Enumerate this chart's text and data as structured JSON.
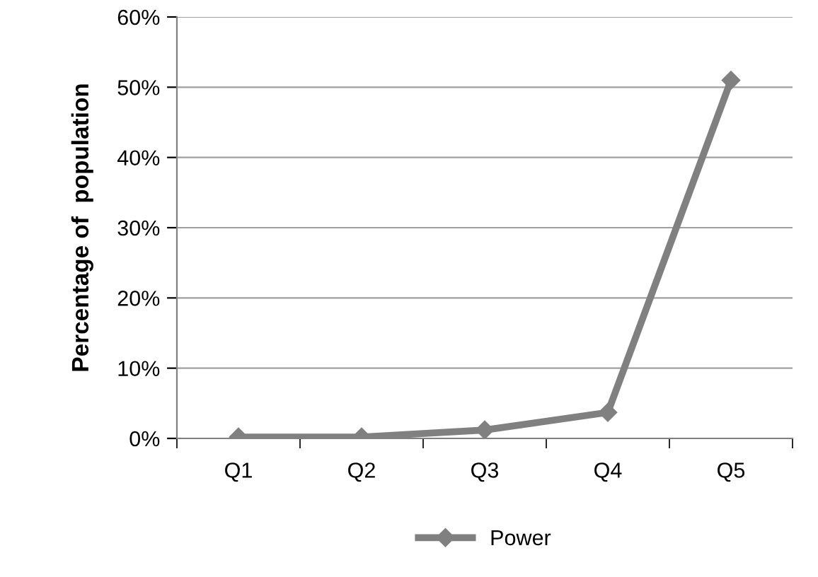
{
  "chart_data": {
    "type": "line",
    "ylabel": "Percentage of  population",
    "categories": [
      "Q1",
      "Q2",
      "Q3",
      "Q4",
      "Q5"
    ],
    "series": [
      {
        "name": "Power",
        "color": "#808080",
        "values": [
          0.2,
          0.2,
          1.2,
          3.7,
          51
        ]
      }
    ],
    "ylim": [
      0,
      60
    ],
    "yticks": [
      {
        "value": 0,
        "label": "0%"
      },
      {
        "value": 10,
        "label": "10%"
      },
      {
        "value": 20,
        "label": "20%"
      },
      {
        "value": 30,
        "label": "30%"
      },
      {
        "value": 40,
        "label": "40%"
      },
      {
        "value": 50,
        "label": "50%"
      },
      {
        "value": 60,
        "label": "60%"
      }
    ],
    "grid": "y",
    "legend": "bottom",
    "marker": "diamond",
    "line_style": "solid"
  }
}
